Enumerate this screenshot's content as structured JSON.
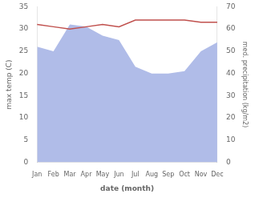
{
  "chart_data": {
    "type": "line",
    "categories": [
      "Jan",
      "Feb",
      "Mar",
      "Apr",
      "May",
      "Jun",
      "Jul",
      "Aug",
      "Sep",
      "Oct",
      "Nov",
      "Dec"
    ],
    "series": [
      {
        "type": "line",
        "color": "#c0504d",
        "values": [
          31.0,
          30.5,
          30.0,
          30.5,
          31.0,
          30.5,
          32.0,
          32.0,
          32.0,
          32.0,
          31.5,
          31.5
        ]
      },
      {
        "type": "area",
        "color": "#b0bce8",
        "axis": "y2",
        "values": [
          52,
          50,
          62,
          61,
          57,
          55,
          43,
          40,
          40,
          41,
          50,
          54
        ]
      }
    ],
    "xlabel": "date (month)",
    "ylabel": "max temp (C)",
    "y2label": "med. precipitation (kg/m2)",
    "ylim": [
      0,
      35
    ],
    "yticks": [
      0,
      5,
      10,
      15,
      20,
      25,
      30,
      35
    ],
    "y2lim": [
      0,
      70
    ],
    "y2ticks": [
      0,
      10,
      20,
      30,
      40,
      50,
      60,
      70
    ],
    "grid": false
  }
}
